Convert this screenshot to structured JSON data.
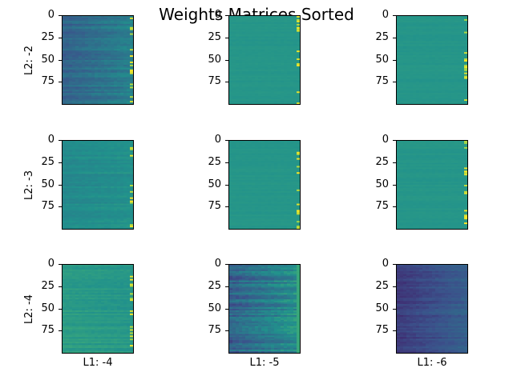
{
  "chart_data": {
    "type": "heatmap",
    "title": "Weights Matrices Sorted",
    "colormap": "viridis",
    "row_labels": [
      "L2: -2",
      "L2: -3",
      "L2: -4"
    ],
    "col_labels": [
      "L1: -4",
      "L1: -5",
      "L1: -6"
    ],
    "y_ticks": [
      0,
      25,
      50,
      75
    ],
    "y_range": [
      0,
      99
    ],
    "panels": [
      {
        "row": 0,
        "col": 0,
        "base": 0.44,
        "left_mod": -0.12,
        "right_edge": "bright",
        "noise": 0.05
      },
      {
        "row": 0,
        "col": 1,
        "base": 0.52,
        "left_mod": 0.0,
        "right_edge": "bright",
        "noise": 0.01
      },
      {
        "row": 0,
        "col": 2,
        "base": 0.52,
        "left_mod": 0.0,
        "right_edge": "bright",
        "noise": 0.01
      },
      {
        "row": 1,
        "col": 0,
        "base": 0.5,
        "left_mod": -0.03,
        "right_edge": "bright",
        "noise": 0.03
      },
      {
        "row": 1,
        "col": 1,
        "base": 0.52,
        "left_mod": 0.0,
        "right_edge": "bright",
        "noise": 0.01
      },
      {
        "row": 1,
        "col": 2,
        "base": 0.52,
        "left_mod": 0.0,
        "right_edge": "bright",
        "noise": 0.01
      },
      {
        "row": 2,
        "col": 0,
        "base": 0.53,
        "left_mod": 0.02,
        "right_edge": "bright",
        "noise": 0.03
      },
      {
        "row": 2,
        "col": 1,
        "base": 0.36,
        "left_mod": -0.05,
        "right_edge": "green",
        "noise": 0.08
      },
      {
        "row": 2,
        "col": 2,
        "base": 0.3,
        "left_mod": -0.12,
        "right_edge": "none",
        "noise": 0.04
      }
    ]
  }
}
